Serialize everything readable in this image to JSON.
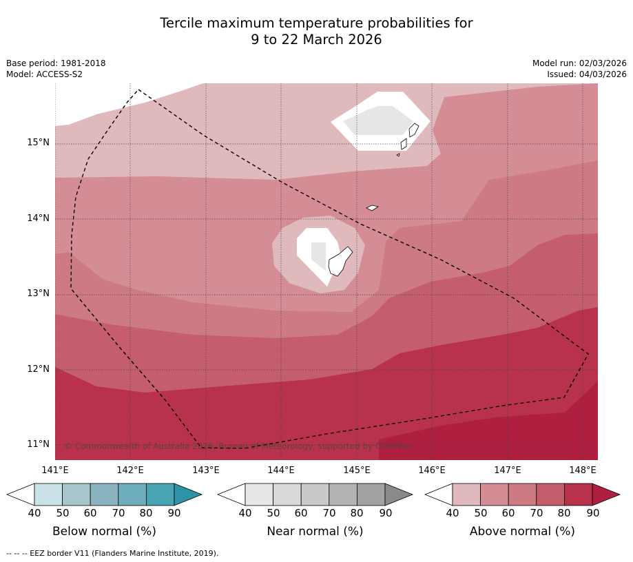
{
  "title": {
    "line1": "Tercile maximum temperature probabilities for",
    "line2": "9 to 22 March 2026"
  },
  "meta_left": {
    "base_period": "Base period: 1981-2018",
    "model": "Model: ACCESS-S2"
  },
  "meta_right": {
    "model_run": "Model run: 02/03/2026",
    "issued": "Issued: 04/03/2026"
  },
  "map": {
    "latitude_labels": [
      "15°N",
      "14°N",
      "13°N",
      "12°N",
      "11°N"
    ],
    "longitude_labels": [
      "141°E",
      "142°E",
      "143°E",
      "144°E",
      "145°E",
      "146°E",
      "147°E",
      "148°E"
    ],
    "copyright": "© Commonwealth of Australia 2026, Bureau of Meteorology, supported by COSPPac"
  },
  "colorbars": [
    {
      "label": "Below normal (%)",
      "ticks": [
        "40",
        "50",
        "60",
        "70",
        "80",
        "90"
      ],
      "colors": [
        "#c9e1e7",
        "#a7c6cb",
        "#8ab5c0",
        "#6dadbd",
        "#48a3b3",
        "#2e93a6"
      ]
    },
    {
      "label": "Near normal (%)",
      "ticks": [
        "40",
        "50",
        "60",
        "70",
        "80",
        "90"
      ],
      "colors": [
        "#e6e6e6",
        "#d9d9d9",
        "#c9c9c9",
        "#b3b3b3",
        "#a2a2a2",
        "#8a8a8a"
      ]
    },
    {
      "label": "Above normal (%)",
      "ticks": [
        "40",
        "50",
        "60",
        "70",
        "80",
        "90"
      ],
      "colors": [
        "#e0b9bd",
        "#d48c95",
        "#cd7a82",
        "#c55e6c",
        "#b9324b",
        "#ae1f40"
      ]
    }
  ],
  "map_colors": {
    "p40": "#e0b9bd",
    "p50": "#d48c95",
    "p60": "#cd7a82",
    "p70": "#c55e6c",
    "p80": "#b9324b",
    "p90": "#ae1f40",
    "near40": "#e6e6e6"
  },
  "footer": "--  --  -- EEZ border V11 (Flanders Marine Institute, 2019)."
}
